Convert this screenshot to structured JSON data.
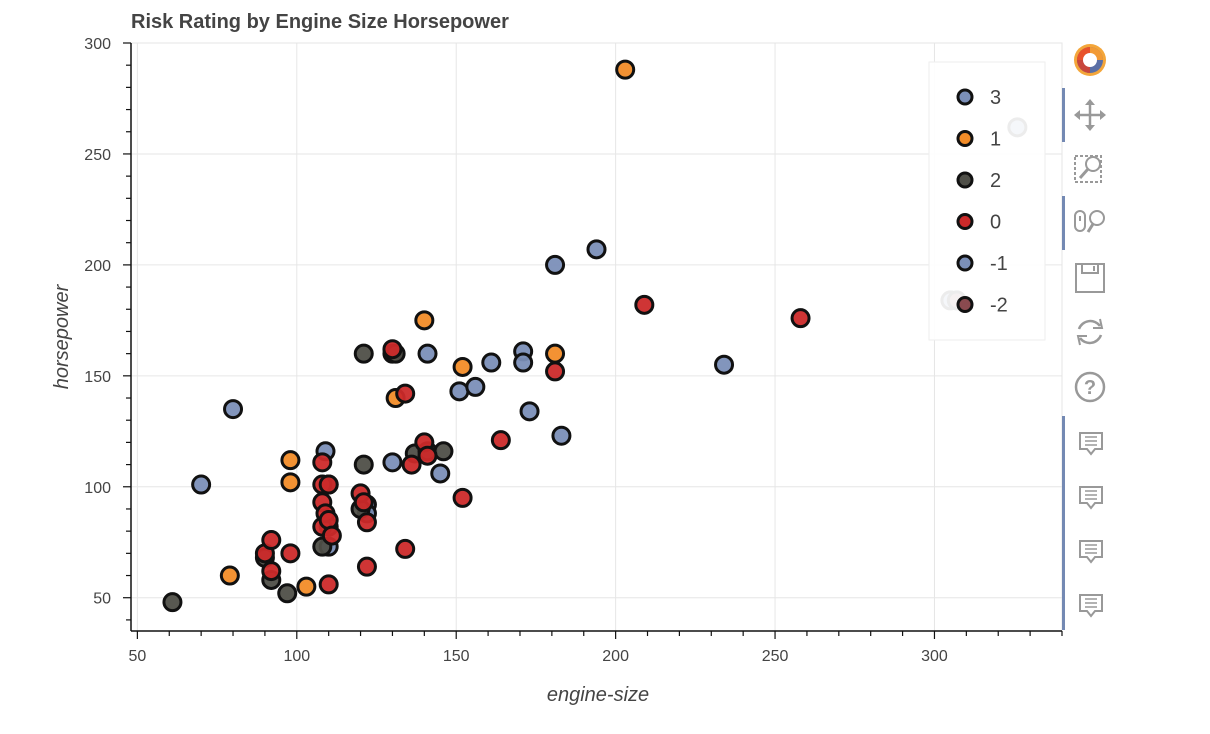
{
  "chart_data": {
    "type": "scatter",
    "title": "Risk Rating by Engine Size Horsepower",
    "xlabel": "engine-size",
    "ylabel": "horsepower",
    "xlim": [
      48,
      340
    ],
    "ylim": [
      35,
      300
    ],
    "x_ticks": [
      50,
      100,
      150,
      200,
      250,
      300
    ],
    "y_ticks": [
      50,
      100,
      150,
      200,
      250,
      300
    ],
    "grid": true,
    "legend_position": "top-right",
    "series": [
      {
        "name": "3",
        "color": "#7b8fb8",
        "points": [
          [
            70,
            101
          ],
          [
            80,
            135
          ],
          [
            109,
            116
          ],
          [
            110,
            73
          ],
          [
            122,
            92
          ],
          [
            122,
            88
          ],
          [
            130,
            111
          ],
          [
            141,
            160
          ],
          [
            145,
            106
          ],
          [
            151,
            143
          ],
          [
            156,
            145
          ],
          [
            161,
            156
          ],
          [
            171,
            161
          ],
          [
            171,
            156
          ],
          [
            173,
            134
          ],
          [
            181,
            200
          ],
          [
            183,
            123
          ],
          [
            194,
            207
          ],
          [
            234,
            155
          ],
          [
            326,
            262
          ]
        ]
      },
      {
        "name": "1",
        "color": "#f28c28",
        "points": [
          [
            79,
            60
          ],
          [
            98,
            112
          ],
          [
            98,
            102
          ],
          [
            103,
            55
          ],
          [
            131,
            140
          ],
          [
            140,
            175
          ],
          [
            152,
            154
          ],
          [
            181,
            160
          ],
          [
            203,
            288
          ],
          [
            130,
            160
          ]
        ]
      },
      {
        "name": "2",
        "color": "#4f4f48",
        "points": [
          [
            61,
            48
          ],
          [
            90,
            68
          ],
          [
            92,
            58
          ],
          [
            97,
            52
          ],
          [
            110,
            101
          ],
          [
            110,
            82
          ],
          [
            108,
            73
          ],
          [
            120,
            90
          ],
          [
            121,
            160
          ],
          [
            121,
            110
          ],
          [
            137,
            115
          ],
          [
            141,
            116
          ],
          [
            146,
            116
          ],
          [
            131,
            160
          ]
        ]
      },
      {
        "name": "0",
        "color": "#cc2a2a",
        "points": [
          [
            90,
            70
          ],
          [
            92,
            76
          ],
          [
            92,
            62
          ],
          [
            98,
            70
          ],
          [
            108,
            111
          ],
          [
            108,
            101
          ],
          [
            108,
            93
          ],
          [
            108,
            82
          ],
          [
            109,
            88
          ],
          [
            110,
            56
          ],
          [
            110,
            101
          ],
          [
            110,
            85
          ],
          [
            111,
            78
          ],
          [
            120,
            97
          ],
          [
            121,
            93
          ],
          [
            122,
            84
          ],
          [
            122,
            64
          ],
          [
            130,
            162
          ],
          [
            134,
            142
          ],
          [
            134,
            72
          ],
          [
            136,
            110
          ],
          [
            140,
            120
          ],
          [
            141,
            114
          ],
          [
            152,
            95
          ],
          [
            164,
            121
          ],
          [
            181,
            152
          ],
          [
            209,
            182
          ],
          [
            258,
            176
          ]
        ]
      },
      {
        "name": "-1",
        "color": "#7b8fb8",
        "points": [
          [
            305,
            184
          ]
        ]
      },
      {
        "name": "-2",
        "color": "#8a4a4f",
        "points": [
          [
            307,
            184
          ]
        ]
      }
    ]
  },
  "toolbar": {
    "tools": [
      {
        "name": "bokeh-logo-icon"
      },
      {
        "name": "pan-tool-icon"
      },
      {
        "name": "box-zoom-tool-icon"
      },
      {
        "name": "wheel-zoom-tool-icon"
      },
      {
        "name": "save-tool-icon"
      },
      {
        "name": "reset-tool-icon"
      },
      {
        "name": "help-tool-icon"
      },
      {
        "name": "hover-tool-icon"
      }
    ]
  }
}
